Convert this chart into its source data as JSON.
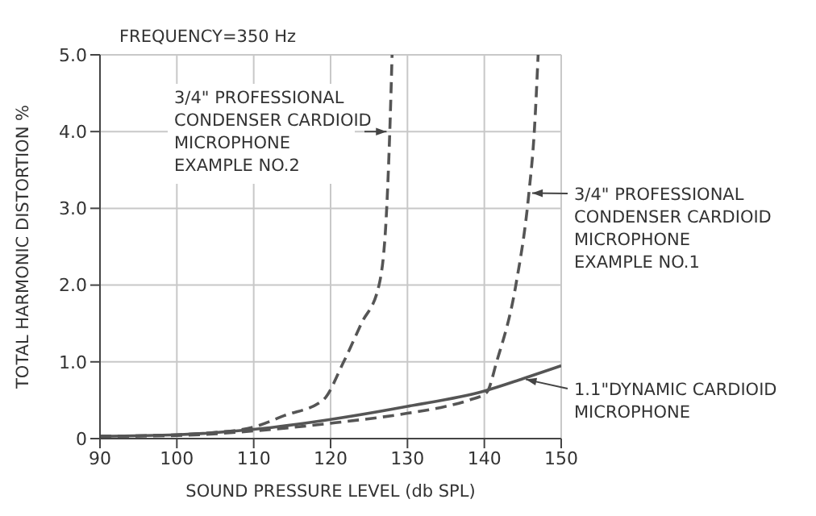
{
  "chart_data": {
    "type": "line",
    "xlabel": "SOUND PRESSURE LEVEL (db SPL)",
    "ylabel": "TOTAL HARMONIC DISTORTION %",
    "annotations": [
      "FREQUENCY=350 Hz"
    ],
    "xlim": [
      90,
      150
    ],
    "xticks": [
      90,
      100,
      110,
      120,
      130,
      140,
      150
    ],
    "ylim": [
      0,
      5
    ],
    "yticks": [
      {
        "value": 0,
        "label": "0"
      },
      {
        "value": 1,
        "label": "1.0"
      },
      {
        "value": 2,
        "label": "2.0"
      },
      {
        "value": 3,
        "label": "3.0"
      },
      {
        "value": 4,
        "label": "4.0"
      },
      {
        "value": 5,
        "label": "5.0"
      }
    ],
    "grid": true,
    "marker": "none",
    "series": [
      {
        "name": "3/4\" PROFESSIONAL\nCONDENSER CARDIOID\nMICROPHONE\nEXAMPLE NO.2",
        "color": "#555555",
        "line_style": "dashed",
        "x": [
          90,
          100,
          105,
          110,
          114,
          119,
          121.7,
          124,
          126.3,
          127.3,
          127.7,
          128
        ],
        "values": [
          0.03,
          0.05,
          0.08,
          0.15,
          0.3,
          0.5,
          1.0,
          1.5,
          2.0,
          3.0,
          4.0,
          5.0
        ]
      },
      {
        "name": "3/4\" PROFESSIONAL\nCONDENSER CARDIOID\nMICROPHONE\nEXAMPLE NO.1",
        "color": "#555555",
        "line_style": "dashed",
        "x": [
          90,
          100,
          110,
          120,
          130,
          135,
          138,
          140.3,
          141.6,
          144.1,
          145.8,
          146.5,
          147
        ],
        "values": [
          0.03,
          0.04,
          0.1,
          0.2,
          0.33,
          0.42,
          0.5,
          0.6,
          1.0,
          2.0,
          3.2,
          4.0,
          5.0
        ]
      },
      {
        "name": "1.1\"DYNAMIC CARDIOID\nMICROPHONE",
        "color": "#555555",
        "line_style": "solid",
        "x": [
          90,
          100,
          110,
          120,
          130,
          140,
          145,
          150
        ],
        "values": [
          0.03,
          0.05,
          0.12,
          0.25,
          0.42,
          0.62,
          0.78,
          0.95
        ]
      }
    ]
  }
}
